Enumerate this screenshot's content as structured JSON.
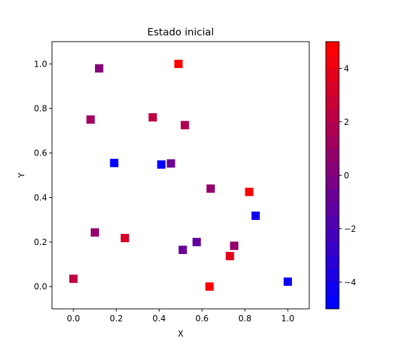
{
  "chart_data": {
    "type": "scatter",
    "title": "Estado inicial",
    "xlabel": "X",
    "ylabel": "Y",
    "xlim": [
      -0.1,
      1.1
    ],
    "ylim": [
      -0.1,
      1.1
    ],
    "xticks": [
      0.0,
      0.2,
      0.4,
      0.6,
      0.8,
      1.0
    ],
    "yticks": [
      0.0,
      0.2,
      0.4,
      0.6,
      0.8,
      1.0
    ],
    "xtick_labels": [
      "0.0",
      "0.2",
      "0.4",
      "0.6",
      "0.8",
      "1.0"
    ],
    "ytick_labels": [
      "0.0",
      "0.2",
      "0.4",
      "0.6",
      "0.8",
      "1.0"
    ],
    "grid": false,
    "marker": "square",
    "colormap": {
      "name": "blue-to-red",
      "low_color": "#0000ff",
      "high_color": "#ff0000",
      "vmin": -5,
      "vmax": 5,
      "levels": 20,
      "ticks": [
        -4,
        -2,
        0,
        2,
        4
      ],
      "tick_labels": [
        "−4",
        "−2",
        "0",
        "2",
        "4"
      ]
    },
    "points": [
      {
        "x": 0.12,
        "y": 0.98,
        "value": 0.2
      },
      {
        "x": 0.49,
        "y": 1.0,
        "value": 4.5
      },
      {
        "x": 0.08,
        "y": 0.75,
        "value": 1.3
      },
      {
        "x": 0.37,
        "y": 0.76,
        "value": 2.3
      },
      {
        "x": 0.52,
        "y": 0.725,
        "value": 1.8
      },
      {
        "x": 0.19,
        "y": 0.555,
        "value": -4.9
      },
      {
        "x": 0.41,
        "y": 0.548,
        "value": -4.6
      },
      {
        "x": 0.455,
        "y": 0.553,
        "value": -0.7
      },
      {
        "x": 0.64,
        "y": 0.44,
        "value": 0.6
      },
      {
        "x": 0.82,
        "y": 0.425,
        "value": 4.8
      },
      {
        "x": 0.85,
        "y": 0.318,
        "value": -4.3
      },
      {
        "x": 0.1,
        "y": 0.243,
        "value": 0.5
      },
      {
        "x": 0.24,
        "y": 0.218,
        "value": 3.2
      },
      {
        "x": 0.51,
        "y": 0.165,
        "value": -0.6
      },
      {
        "x": 0.575,
        "y": 0.2,
        "value": -1.2
      },
      {
        "x": 0.75,
        "y": 0.183,
        "value": 0.9
      },
      {
        "x": 0.73,
        "y": 0.137,
        "value": 3.5
      },
      {
        "x": 0.0,
        "y": 0.035,
        "value": 2.4
      },
      {
        "x": 0.635,
        "y": 0.0,
        "value": 5.0
      },
      {
        "x": 1.0,
        "y": 0.022,
        "value": -4.4
      }
    ]
  }
}
